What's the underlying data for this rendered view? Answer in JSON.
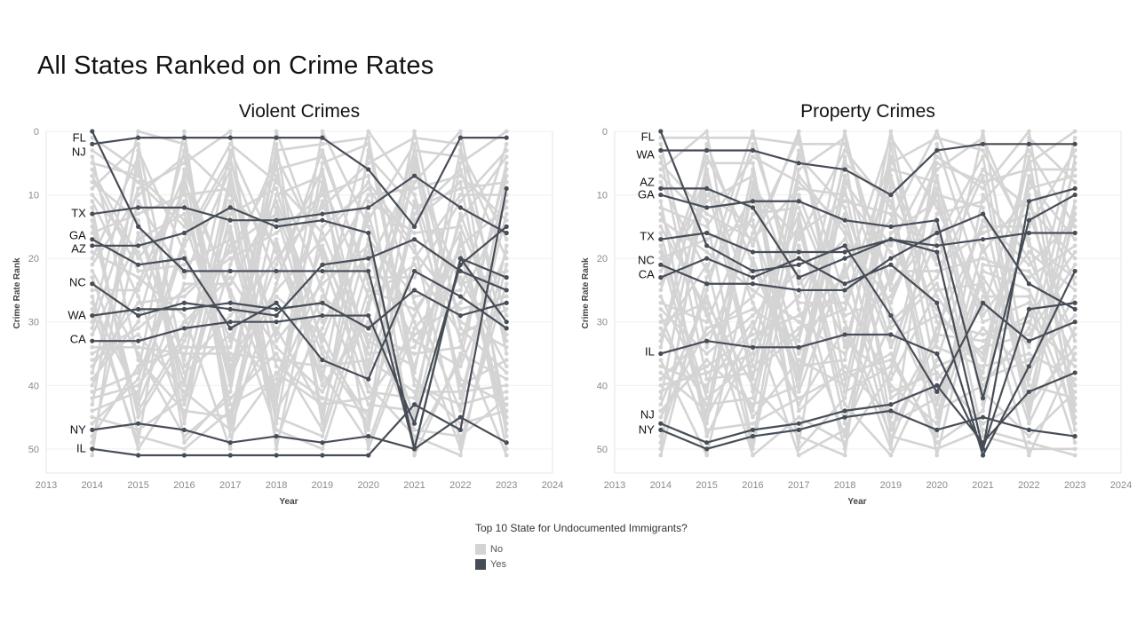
{
  "page": {
    "title": "All States Ranked on Crime Rates"
  },
  "legend": {
    "title": "Top 10 State for Undocumented Immigrants?",
    "items": [
      {
        "label": "No",
        "color": "#d4d4d4"
      },
      {
        "label": "Yes",
        "color": "#474d57"
      }
    ]
  },
  "chart_data": [
    {
      "type": "line",
      "title": "Violent Crimes",
      "xlabel": "Year",
      "ylabel": "Crime Rate Rank",
      "xlim": [
        2013,
        2024
      ],
      "ylim": [
        51,
        0
      ],
      "y_reversed": true,
      "x_ticks": [
        2013,
        2014,
        2015,
        2016,
        2017,
        2018,
        2019,
        2020,
        2021,
        2022,
        2023,
        2024
      ],
      "y_ticks": [
        0,
        10,
        20,
        30,
        40,
        50
      ],
      "grid": "horizontal",
      "x": [
        2014,
        2015,
        2016,
        2017,
        2018,
        2019,
        2020,
        2021,
        2022,
        2023
      ],
      "highlight_color": "#474d57",
      "background_color": "#d4d4d4",
      "series": [
        {
          "name": "FL",
          "group": "Yes",
          "values": [
            0,
            15,
            22,
            22,
            22,
            22,
            22,
            50,
            20,
            30
          ]
        },
        {
          "name": "NJ",
          "group": "Yes",
          "values": [
            2,
            1,
            1,
            1,
            1,
            1,
            6,
            15,
            1,
            1
          ]
        },
        {
          "name": "TX",
          "group": "Yes",
          "values": [
            13,
            12,
            12,
            14,
            14,
            13,
            12,
            7,
            12,
            16
          ]
        },
        {
          "name": "GA",
          "group": "Yes",
          "values": [
            17,
            21,
            20,
            31,
            27,
            36,
            39,
            22,
            26,
            31
          ]
        },
        {
          "name": "AZ",
          "group": "Yes",
          "values": [
            18,
            18,
            16,
            12,
            15,
            14,
            16,
            50,
            20,
            23
          ]
        },
        {
          "name": "NC",
          "group": "Yes",
          "values": [
            24,
            29,
            27,
            28,
            29,
            21,
            20,
            17,
            22,
            25
          ]
        },
        {
          "name": "WA",
          "group": "Yes",
          "values": [
            29,
            28,
            28,
            27,
            28,
            27,
            31,
            25,
            29,
            27
          ]
        },
        {
          "name": "CA",
          "group": "Yes",
          "values": [
            33,
            33,
            31,
            30,
            30,
            29,
            29,
            46,
            21,
            15
          ]
        },
        {
          "name": "NY",
          "group": "Yes",
          "values": [
            47,
            46,
            47,
            49,
            48,
            49,
            48,
            50,
            45,
            49
          ]
        },
        {
          "name": "IL",
          "group": "Yes",
          "values": [
            50,
            51,
            51,
            51,
            51,
            51,
            51,
            43,
            47,
            9
          ]
        }
      ],
      "annotations": [
        "FL",
        "NJ",
        "TX",
        "GA",
        "AZ",
        "NC",
        "WA",
        "CA",
        "NY",
        "IL"
      ]
    },
    {
      "type": "line",
      "title": "Property Crimes",
      "xlabel": "Year",
      "ylabel": "Crime Rate Rank",
      "xlim": [
        2013,
        2024
      ],
      "ylim": [
        51,
        0
      ],
      "y_reversed": true,
      "x_ticks": [
        2013,
        2014,
        2015,
        2016,
        2017,
        2018,
        2019,
        2020,
        2021,
        2022,
        2023,
        2024
      ],
      "y_ticks": [
        0,
        10,
        20,
        30,
        40,
        50
      ],
      "grid": "horizontal",
      "x": [
        2014,
        2015,
        2016,
        2017,
        2018,
        2019,
        2020,
        2021,
        2022,
        2023
      ],
      "highlight_color": "#474d57",
      "background_color": "#d4d4d4",
      "series": [
        {
          "name": "FL",
          "group": "Yes",
          "values": [
            0,
            18,
            22,
            21,
            18,
            29,
            41,
            27,
            33,
            30
          ]
        },
        {
          "name": "WA",
          "group": "Yes",
          "values": [
            3,
            3,
            3,
            5,
            6,
            10,
            3,
            2,
            2,
            2
          ]
        },
        {
          "name": "AZ",
          "group": "Yes",
          "values": [
            9,
            9,
            12,
            23,
            20,
            17,
            19,
            50,
            11,
            9
          ]
        },
        {
          "name": "GA",
          "group": "Yes",
          "values": [
            10,
            12,
            11,
            11,
            14,
            15,
            14,
            42,
            14,
            10
          ]
        },
        {
          "name": "TX",
          "group": "Yes",
          "values": [
            17,
            16,
            19,
            19,
            19,
            17,
            18,
            17,
            16,
            16
          ]
        },
        {
          "name": "NC",
          "group": "Yes",
          "values": [
            21,
            24,
            24,
            25,
            25,
            20,
            16,
            13,
            24,
            28
          ]
        },
        {
          "name": "CA",
          "group": "Yes",
          "values": [
            23,
            20,
            23,
            20,
            24,
            21,
            27,
            51,
            37,
            22
          ]
        },
        {
          "name": "IL",
          "group": "Yes",
          "values": [
            35,
            33,
            34,
            34,
            32,
            32,
            35,
            50,
            28,
            27
          ]
        },
        {
          "name": "NJ",
          "group": "Yes",
          "values": [
            46,
            49,
            47,
            46,
            44,
            43,
            40,
            49,
            41,
            38
          ]
        },
        {
          "name": "NY",
          "group": "Yes",
          "values": [
            47,
            50,
            48,
            47,
            45,
            44,
            47,
            45,
            47,
            48
          ]
        }
      ],
      "annotations": [
        "FL",
        "WA",
        "AZ",
        "GA",
        "TX",
        "NC",
        "CA",
        "IL",
        "NJ",
        "NY"
      ]
    }
  ]
}
